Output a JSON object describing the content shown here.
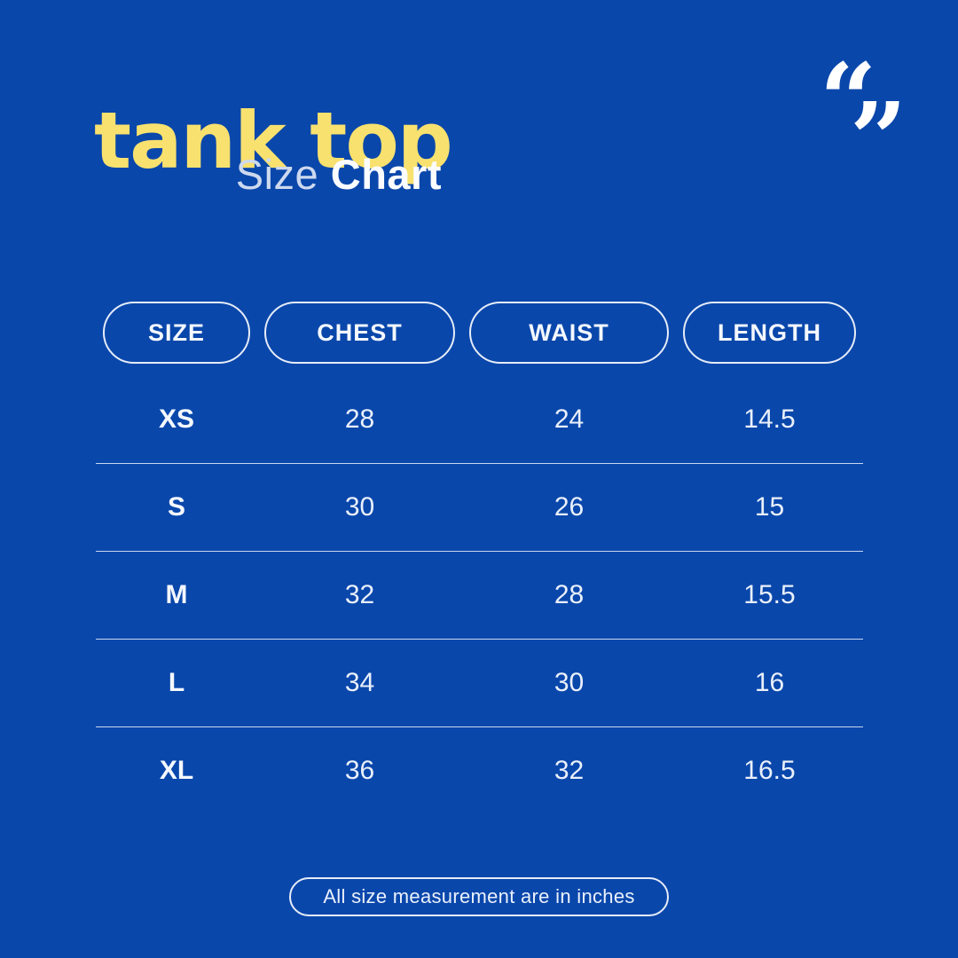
{
  "colors": {
    "background": "#0A47AB",
    "title_yellow": "#F8E16E",
    "subtitle_light": "#CDD9EE",
    "text_white": "#F4F8FD",
    "pill_border": "#E6EDF8"
  },
  "header": {
    "title": "tank top",
    "subtitle": {
      "light": "Size",
      "bold": "Chart"
    },
    "quote_icon": {
      "open": "“",
      "close": "”"
    }
  },
  "table": {
    "columns": [
      "SIZE",
      "CHEST",
      "WAIST",
      "LENGTH"
    ],
    "rows": [
      {
        "size": "XS",
        "chest": "28",
        "waist": "24",
        "length": "14.5"
      },
      {
        "size": "S",
        "chest": "30",
        "waist": "26",
        "length": "15"
      },
      {
        "size": "M",
        "chest": "32",
        "waist": "28",
        "length": "15.5"
      },
      {
        "size": "L",
        "chest": "34",
        "waist": "30",
        "length": "16"
      },
      {
        "size": "XL",
        "chest": "36",
        "waist": "32",
        "length": "16.5"
      }
    ]
  },
  "footer": {
    "note": "All size measurement are in inches"
  },
  "chart_data": {
    "type": "table",
    "title": "Tank Top Size Chart",
    "columns": [
      "SIZE",
      "CHEST",
      "WAIST",
      "LENGTH"
    ],
    "rows": [
      [
        "XS",
        28,
        24,
        14.5
      ],
      [
        "S",
        30,
        26,
        15
      ],
      [
        "M",
        32,
        28,
        15.5
      ],
      [
        "L",
        34,
        30,
        16
      ],
      [
        "XL",
        36,
        32,
        16.5
      ]
    ],
    "units": "inches",
    "note": "All size measurement are in inches"
  }
}
